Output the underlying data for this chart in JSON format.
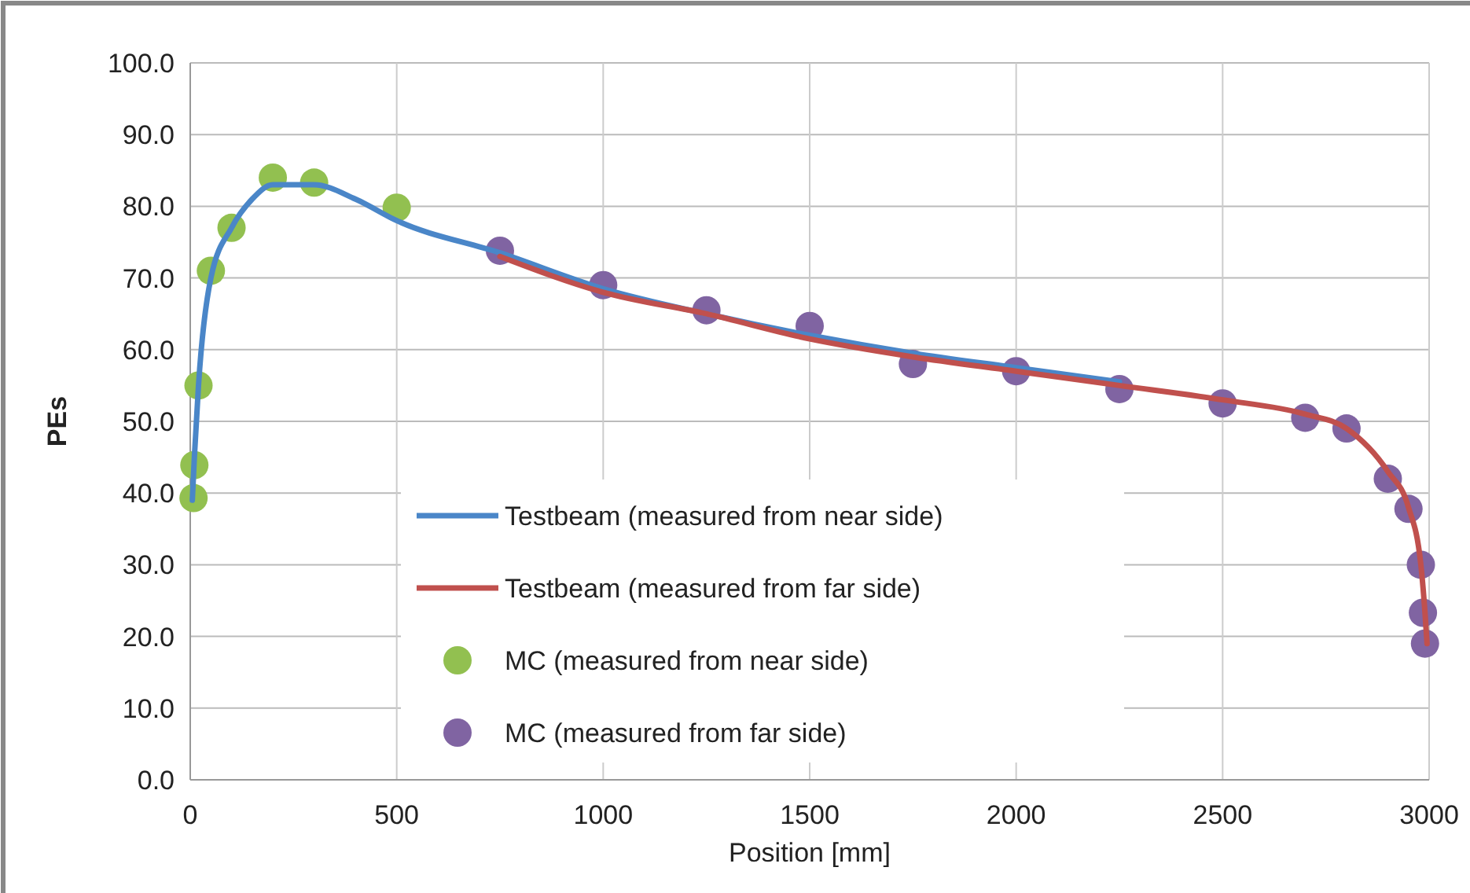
{
  "chart_data": {
    "type": "line",
    "xlabel": "Position [mm]",
    "ylabel": "PEs",
    "xlim": [
      0,
      3000
    ],
    "xticks": [
      0,
      500,
      1000,
      1500,
      2000,
      2500,
      3000
    ],
    "ylim": [
      0,
      100
    ],
    "yticks": [
      {
        "value": 0,
        "label": "0.0"
      },
      {
        "value": 10,
        "label": "10.0"
      },
      {
        "value": 20,
        "label": "20.0"
      },
      {
        "value": 30,
        "label": "30.0"
      },
      {
        "value": 40,
        "label": "40.0"
      },
      {
        "value": 50,
        "label": "50.0"
      },
      {
        "value": 60,
        "label": "60.0"
      },
      {
        "value": 70,
        "label": "70.0"
      },
      {
        "value": 80,
        "label": "80.0"
      },
      {
        "value": 90,
        "label": "90.0"
      },
      {
        "value": 100,
        "label": "100.0"
      }
    ],
    "grid": true,
    "legend": "bottom",
    "series": [
      {
        "name": "Testbeam (measured from near side)",
        "marker": "none",
        "color": "#4a86c8",
        "x": [
          5,
          10,
          20,
          50,
          100,
          150,
          200,
          300,
          400,
          500,
          750,
          1000,
          1250,
          1500,
          1750,
          2000,
          2250
        ],
        "values": [
          39,
          45,
          55,
          70,
          77,
          81,
          83,
          83,
          81,
          78,
          73.5,
          68.5,
          65,
          62,
          59.5,
          57.5,
          55.5
        ]
      },
      {
        "name": "Testbeam (measured from far side)",
        "marker": "none",
        "color": "#c0504d",
        "x": [
          750,
          1000,
          1250,
          1500,
          1750,
          2000,
          2250,
          2500,
          2700,
          2800,
          2900,
          2950,
          2980,
          2990,
          2995
        ],
        "values": [
          73,
          68,
          65,
          61.5,
          59,
          57,
          55,
          53,
          51,
          49,
          43,
          38,
          30,
          23.3,
          19
        ]
      },
      {
        "name": "MC (measured from near side)",
        "type": "scatter",
        "marker": "circle",
        "color": "#92c050",
        "x": [
          8,
          10,
          20,
          50,
          100,
          200,
          300,
          500
        ],
        "values": [
          39.3,
          43.9,
          55,
          71,
          77,
          84,
          83.3,
          79.8
        ]
      },
      {
        "name": "MC (measured from far side)",
        "type": "scatter",
        "marker": "circle",
        "color": "#8064a2",
        "x": [
          750,
          1000,
          1250,
          1500,
          1750,
          2000,
          2250,
          2500,
          2700,
          2800,
          2900,
          2950,
          2980,
          2985,
          2990
        ],
        "values": [
          73.8,
          69,
          65.5,
          63.3,
          58,
          57,
          54.5,
          52.5,
          50.5,
          49,
          42,
          37.8,
          30,
          23.3,
          19
        ]
      }
    ]
  }
}
